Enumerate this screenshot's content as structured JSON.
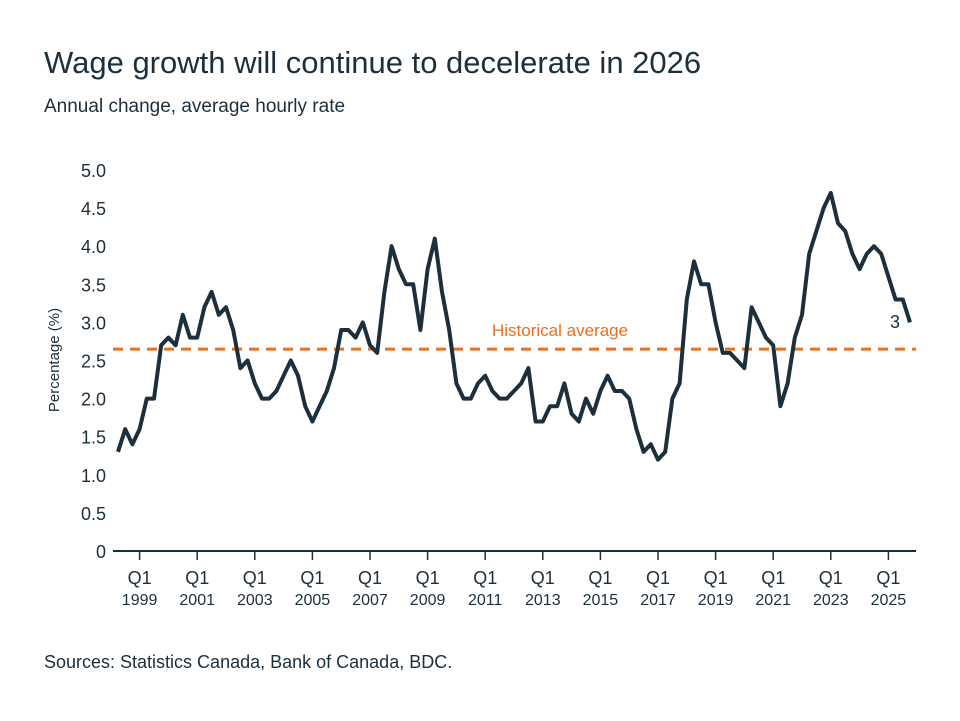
{
  "chart_data": {
    "type": "line",
    "title": "Wage growth will continue to decelerate in 2026",
    "subtitle": "Annual change, average hourly rate",
    "ylabel": "Percentage (%)",
    "xlabel": "",
    "ylim": [
      0,
      5.0
    ],
    "y_ticks": [
      "0",
      "0.5",
      "1.0",
      "1.5",
      "2.0",
      "2.5",
      "3.0",
      "3.5",
      "4.0",
      "4.5",
      "5.0"
    ],
    "x_tick_labels": [
      {
        "quarter": "Q1",
        "year": "1999"
      },
      {
        "quarter": "Q1",
        "year": "2001"
      },
      {
        "quarter": "Q1",
        "year": "2003"
      },
      {
        "quarter": "Q1",
        "year": "2005"
      },
      {
        "quarter": "Q1",
        "year": "2007"
      },
      {
        "quarter": "Q1",
        "year": "2009"
      },
      {
        "quarter": "Q1",
        "year": "2011"
      },
      {
        "quarter": "Q1",
        "year": "2013"
      },
      {
        "quarter": "Q1",
        "year": "2015"
      },
      {
        "quarter": "Q1",
        "year": "2017"
      },
      {
        "quarter": "Q1",
        "year": "2019"
      },
      {
        "quarter": "Q1",
        "year": "2021"
      },
      {
        "quarter": "Q1",
        "year": "2023"
      },
      {
        "quarter": "Q1",
        "year": "2025"
      }
    ],
    "x_start": "Q2 1998",
    "x_end": "Q4 2025",
    "frequency": "quarterly",
    "grid": false,
    "series": [
      {
        "color": "#1c2f3c",
        "values": [
          1.3,
          1.6,
          1.4,
          1.6,
          2.0,
          2.0,
          2.7,
          2.8,
          2.7,
          3.1,
          2.8,
          2.8,
          3.2,
          3.4,
          3.1,
          3.2,
          2.9,
          2.4,
          2.5,
          2.2,
          2.0,
          2.0,
          2.1,
          2.3,
          2.5,
          2.3,
          1.9,
          1.7,
          1.9,
          2.1,
          2.4,
          2.9,
          2.9,
          2.8,
          3.0,
          2.7,
          2.6,
          3.4,
          4.0,
          3.7,
          3.5,
          3.5,
          2.9,
          3.7,
          4.1,
          3.4,
          2.9,
          2.2,
          2.0,
          2.0,
          2.2,
          2.3,
          2.1,
          2.0,
          2.0,
          2.1,
          2.2,
          2.4,
          1.7,
          1.7,
          1.9,
          1.9,
          2.2,
          1.8,
          1.7,
          2.0,
          1.8,
          2.1,
          2.3,
          2.1,
          2.1,
          2.0,
          1.6,
          1.3,
          1.4,
          1.2,
          1.3,
          2.0,
          2.2,
          3.3,
          3.8,
          3.5,
          3.5,
          3.0,
          2.6,
          2.6,
          2.5,
          2.4,
          3.2,
          3.0,
          2.8,
          2.7,
          1.9,
          2.2,
          2.8,
          3.1,
          3.9,
          4.2,
          4.5,
          4.7,
          4.3,
          4.2,
          3.9,
          3.7,
          3.9,
          4.0,
          3.9,
          3.6,
          3.3,
          3.3,
          3.0
        ],
        "end_label": "3"
      }
    ],
    "reference_line": {
      "label": "Historical average",
      "value": 2.65,
      "color": "#e8711f",
      "style": "dashed"
    },
    "source": "Sources: Statistics Canada, Bank of Canada, BDC."
  }
}
